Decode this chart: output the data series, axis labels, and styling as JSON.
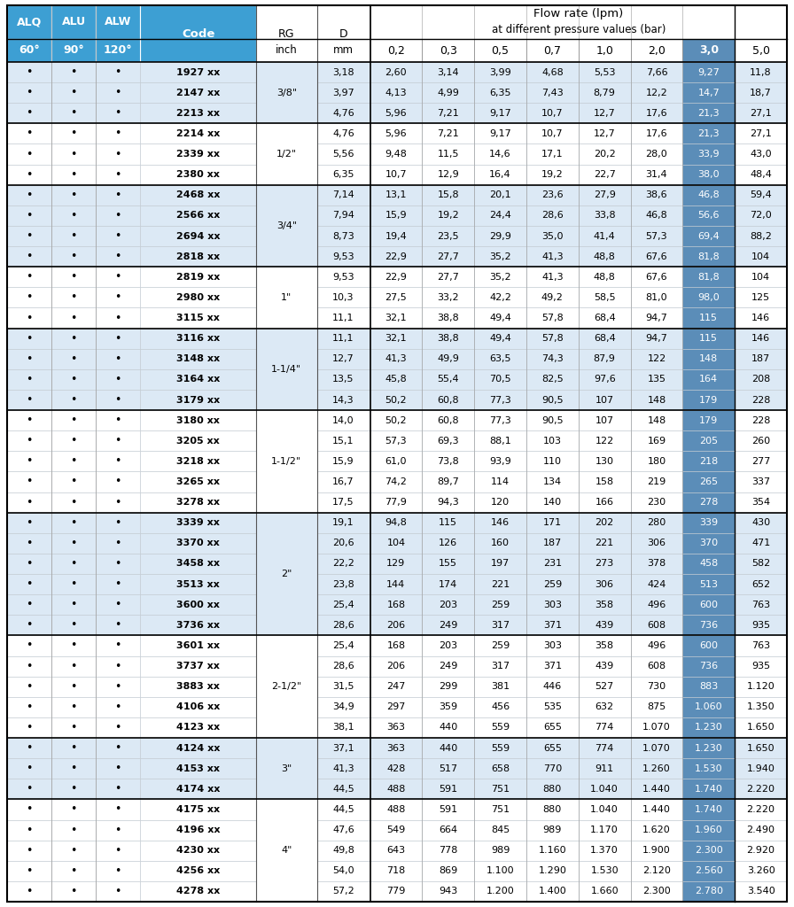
{
  "header_bg": "#3d9fd3",
  "highlight_col_bg": "#5b8db8",
  "row_even_bg": "#dce9f5",
  "row_odd_bg": "#ffffff",
  "header_text_color": "#ffffff",
  "pressure_cols": [
    "0,2",
    "0,3",
    "0,5",
    "0,7",
    "1,0",
    "2,0",
    "3,0",
    "5,0"
  ],
  "groups": [
    {
      "rg": "3/8\"",
      "rows": [
        {
          "code": "1927 xx",
          "d": "3,18",
          "vals": [
            "2,60",
            "3,14",
            "3,99",
            "4,68",
            "5,53",
            "7,66",
            "9,27",
            "11,8"
          ]
        },
        {
          "code": "2147 xx",
          "d": "3,97",
          "vals": [
            "4,13",
            "4,99",
            "6,35",
            "7,43",
            "8,79",
            "12,2",
            "14,7",
            "18,7"
          ]
        },
        {
          "code": "2213 xx",
          "d": "4,76",
          "vals": [
            "5,96",
            "7,21",
            "9,17",
            "10,7",
            "12,7",
            "17,6",
            "21,3",
            "27,1"
          ]
        }
      ]
    },
    {
      "rg": "1/2\"",
      "rows": [
        {
          "code": "2214 xx",
          "d": "4,76",
          "vals": [
            "5,96",
            "7,21",
            "9,17",
            "10,7",
            "12,7",
            "17,6",
            "21,3",
            "27,1"
          ]
        },
        {
          "code": "2339 xx",
          "d": "5,56",
          "vals": [
            "9,48",
            "11,5",
            "14,6",
            "17,1",
            "20,2",
            "28,0",
            "33,9",
            "43,0"
          ]
        },
        {
          "code": "2380 xx",
          "d": "6,35",
          "vals": [
            "10,7",
            "12,9",
            "16,4",
            "19,2",
            "22,7",
            "31,4",
            "38,0",
            "48,4"
          ]
        }
      ]
    },
    {
      "rg": "3/4\"",
      "rows": [
        {
          "code": "2468 xx",
          "d": "7,14",
          "vals": [
            "13,1",
            "15,8",
            "20,1",
            "23,6",
            "27,9",
            "38,6",
            "46,8",
            "59,4"
          ]
        },
        {
          "code": "2566 xx",
          "d": "7,94",
          "vals": [
            "15,9",
            "19,2",
            "24,4",
            "28,6",
            "33,8",
            "46,8",
            "56,6",
            "72,0"
          ]
        },
        {
          "code": "2694 xx",
          "d": "8,73",
          "vals": [
            "19,4",
            "23,5",
            "29,9",
            "35,0",
            "41,4",
            "57,3",
            "69,4",
            "88,2"
          ]
        },
        {
          "code": "2818 xx",
          "d": "9,53",
          "vals": [
            "22,9",
            "27,7",
            "35,2",
            "41,3",
            "48,8",
            "67,6",
            "81,8",
            "104"
          ]
        }
      ]
    },
    {
      "rg": "1\"",
      "rows": [
        {
          "code": "2819 xx",
          "d": "9,53",
          "vals": [
            "22,9",
            "27,7",
            "35,2",
            "41,3",
            "48,8",
            "67,6",
            "81,8",
            "104"
          ]
        },
        {
          "code": "2980 xx",
          "d": "10,3",
          "vals": [
            "27,5",
            "33,2",
            "42,2",
            "49,2",
            "58,5",
            "81,0",
            "98,0",
            "125"
          ]
        },
        {
          "code": "3115 xx",
          "d": "11,1",
          "vals": [
            "32,1",
            "38,8",
            "49,4",
            "57,8",
            "68,4",
            "94,7",
            "115",
            "146"
          ]
        }
      ]
    },
    {
      "rg": "1-1/4\"",
      "rows": [
        {
          "code": "3116 xx",
          "d": "11,1",
          "vals": [
            "32,1",
            "38,8",
            "49,4",
            "57,8",
            "68,4",
            "94,7",
            "115",
            "146"
          ]
        },
        {
          "code": "3148 xx",
          "d": "12,7",
          "vals": [
            "41,3",
            "49,9",
            "63,5",
            "74,3",
            "87,9",
            "122",
            "148",
            "187"
          ]
        },
        {
          "code": "3164 xx",
          "d": "13,5",
          "vals": [
            "45,8",
            "55,4",
            "70,5",
            "82,5",
            "97,6",
            "135",
            "164",
            "208"
          ]
        },
        {
          "code": "3179 xx",
          "d": "14,3",
          "vals": [
            "50,2",
            "60,8",
            "77,3",
            "90,5",
            "107",
            "148",
            "179",
            "228"
          ]
        }
      ]
    },
    {
      "rg": "1-1/2\"",
      "rows": [
        {
          "code": "3180 xx",
          "d": "14,0",
          "vals": [
            "50,2",
            "60,8",
            "77,3",
            "90,5",
            "107",
            "148",
            "179",
            "228"
          ]
        },
        {
          "code": "3205 xx",
          "d": "15,1",
          "vals": [
            "57,3",
            "69,3",
            "88,1",
            "103",
            "122",
            "169",
            "205",
            "260"
          ]
        },
        {
          "code": "3218 xx",
          "d": "15,9",
          "vals": [
            "61,0",
            "73,8",
            "93,9",
            "110",
            "130",
            "180",
            "218",
            "277"
          ]
        },
        {
          "code": "3265 xx",
          "d": "16,7",
          "vals": [
            "74,2",
            "89,7",
            "114",
            "134",
            "158",
            "219",
            "265",
            "337"
          ]
        },
        {
          "code": "3278 xx",
          "d": "17,5",
          "vals": [
            "77,9",
            "94,3",
            "120",
            "140",
            "166",
            "230",
            "278",
            "354"
          ]
        }
      ]
    },
    {
      "rg": "2\"",
      "rows": [
        {
          "code": "3339 xx",
          "d": "19,1",
          "vals": [
            "94,8",
            "115",
            "146",
            "171",
            "202",
            "280",
            "339",
            "430"
          ]
        },
        {
          "code": "3370 xx",
          "d": "20,6",
          "vals": [
            "104",
            "126",
            "160",
            "187",
            "221",
            "306",
            "370",
            "471"
          ]
        },
        {
          "code": "3458 xx",
          "d": "22,2",
          "vals": [
            "129",
            "155",
            "197",
            "231",
            "273",
            "378",
            "458",
            "582"
          ]
        },
        {
          "code": "3513 xx",
          "d": "23,8",
          "vals": [
            "144",
            "174",
            "221",
            "259",
            "306",
            "424",
            "513",
            "652"
          ]
        },
        {
          "code": "3600 xx",
          "d": "25,4",
          "vals": [
            "168",
            "203",
            "259",
            "303",
            "358",
            "496",
            "600",
            "763"
          ]
        },
        {
          "code": "3736 xx",
          "d": "28,6",
          "vals": [
            "206",
            "249",
            "317",
            "371",
            "439",
            "608",
            "736",
            "935"
          ]
        }
      ]
    },
    {
      "rg": "2-1/2\"",
      "rows": [
        {
          "code": "3601 xx",
          "d": "25,4",
          "vals": [
            "168",
            "203",
            "259",
            "303",
            "358",
            "496",
            "600",
            "763"
          ]
        },
        {
          "code": "3737 xx",
          "d": "28,6",
          "vals": [
            "206",
            "249",
            "317",
            "371",
            "439",
            "608",
            "736",
            "935"
          ]
        },
        {
          "code": "3883 xx",
          "d": "31,5",
          "vals": [
            "247",
            "299",
            "381",
            "446",
            "527",
            "730",
            "883",
            "1.120"
          ]
        },
        {
          "code": "4106 xx",
          "d": "34,9",
          "vals": [
            "297",
            "359",
            "456",
            "535",
            "632",
            "875",
            "1.060",
            "1.350"
          ]
        },
        {
          "code": "4123 xx",
          "d": "38,1",
          "vals": [
            "363",
            "440",
            "559",
            "655",
            "774",
            "1.070",
            "1.230",
            "1.650"
          ]
        }
      ]
    },
    {
      "rg": "3\"",
      "rows": [
        {
          "code": "4124 xx",
          "d": "37,1",
          "vals": [
            "363",
            "440",
            "559",
            "655",
            "774",
            "1.070",
            "1.230",
            "1.650"
          ]
        },
        {
          "code": "4153 xx",
          "d": "41,3",
          "vals": [
            "428",
            "517",
            "658",
            "770",
            "911",
            "1.260",
            "1.530",
            "1.940"
          ]
        },
        {
          "code": "4174 xx",
          "d": "44,5",
          "vals": [
            "488",
            "591",
            "751",
            "880",
            "1.040",
            "1.440",
            "1.740",
            "2.220"
          ]
        }
      ]
    },
    {
      "rg": "4\"",
      "rows": [
        {
          "code": "4175 xx",
          "d": "44,5",
          "vals": [
            "488",
            "591",
            "751",
            "880",
            "1.040",
            "1.440",
            "1.740",
            "2.220"
          ]
        },
        {
          "code": "4196 xx",
          "d": "47,6",
          "vals": [
            "549",
            "664",
            "845",
            "989",
            "1.170",
            "1.620",
            "1.960",
            "2.490"
          ]
        },
        {
          "code": "4230 xx",
          "d": "49,8",
          "vals": [
            "643",
            "778",
            "989",
            "1.160",
            "1.370",
            "1.900",
            "2.300",
            "2.920"
          ]
        },
        {
          "code": "4256 xx",
          "d": "54,0",
          "vals": [
            "718",
            "869",
            "1.100",
            "1.290",
            "1.530",
            "2.120",
            "2.560",
            "3.260"
          ]
        },
        {
          "code": "4278 xx",
          "d": "57,2",
          "vals": [
            "779",
            "943",
            "1.200",
            "1.400",
            "1.660",
            "2.300",
            "2.780",
            "3.540"
          ]
        }
      ]
    }
  ]
}
